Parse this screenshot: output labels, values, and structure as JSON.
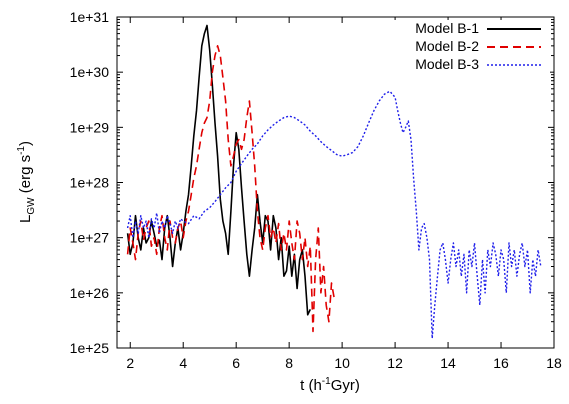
{
  "chart_data": {
    "type": "line",
    "title": "",
    "xlabel": "t (h",
    "xlabel_sup": "-1",
    "xlabel_rest": "Gyr)",
    "ylabel_main": "L",
    "ylabel_sub": "GW",
    "ylabel_unit": " (erg s",
    "ylabel_sup": "-1",
    "ylabel_close": ")",
    "xlim": [
      1.5,
      18
    ],
    "ylim": [
      1e+25,
      1e+31
    ],
    "yscale": "log",
    "x_ticks": [
      2,
      4,
      6,
      8,
      10,
      12,
      14,
      16,
      18
    ],
    "x_tick_labels": [
      "2",
      "4",
      "6",
      "8",
      "10",
      "12",
      "14",
      "16",
      "18"
    ],
    "y_ticks": [
      1e+25,
      1e+26,
      1e+27,
      1e+28,
      1e+29,
      1e+30,
      1e+31
    ],
    "y_tick_labels": [
      "1e+25",
      "1e+26",
      "1e+27",
      "1e+28",
      "1e+29",
      "1e+30",
      "1e+31"
    ],
    "grid": false,
    "legend_position": "top-right",
    "series": [
      {
        "name": "Model B-1",
        "color": "#000000",
        "dash": "solid",
        "x": [
          1.9,
          2.0,
          2.1,
          2.2,
          2.3,
          2.4,
          2.5,
          2.6,
          2.7,
          2.8,
          2.9,
          3.0,
          3.1,
          3.2,
          3.3,
          3.4,
          3.5,
          3.6,
          3.7,
          3.8,
          3.9,
          4.0,
          4.1,
          4.2,
          4.3,
          4.4,
          4.5,
          4.6,
          4.7,
          4.8,
          4.9,
          5.0,
          5.1,
          5.2,
          5.3,
          5.4,
          5.5,
          5.6,
          5.7,
          5.8,
          5.9,
          6.0,
          6.1,
          6.2,
          6.3,
          6.4,
          6.5,
          6.6,
          6.7,
          6.8,
          6.9,
          7.0,
          7.1,
          7.2,
          7.3,
          7.4,
          7.5,
          7.6,
          7.7,
          7.8,
          7.9,
          8.0,
          8.1,
          8.2,
          8.3,
          8.4,
          8.5,
          8.6,
          8.7,
          8.8
        ],
        "y": [
          1.2e+27,
          5e+26,
          8e+26,
          2.5e+27,
          1e+27,
          6e+26,
          1.5e+27,
          8e+26,
          1e+27,
          2e+27,
          1.2e+27,
          7e+26,
          9e+26,
          4e+26,
          1.5e+27,
          2.5e+27,
          1e+27,
          3e+26,
          8e+26,
          1.5e+27,
          6e+26,
          1.2e+27,
          3e+27,
          6e+27,
          2e+28,
          7e+28,
          2e+29,
          8e+29,
          3e+30,
          5e+30,
          7e+30,
          2.5e+30,
          6e+29,
          1.2e+29,
          3e+28,
          5e+27,
          2e+27,
          1.2e+27,
          5e+26,
          3e+27,
          2e+28,
          8e+28,
          4e+28,
          8e+27,
          2e+27,
          5e+26,
          2e+26,
          6e+26,
          1.5e+27,
          6e+27,
          2e+27,
          8e+26,
          2.5e+27,
          2e+27,
          6e+26,
          2.5e+27,
          1.5e+27,
          4e+26,
          1e+27,
          2e+26,
          2.5e+26,
          7e+26,
          2e+26,
          5e+26,
          1.2e+26,
          4e+26,
          6e+26,
          2e+26,
          4e+25,
          5e+25
        ]
      },
      {
        "name": "Model B-2",
        "color": "#e00000",
        "dash": "8,5",
        "x": [
          1.9,
          2.0,
          2.1,
          2.2,
          2.3,
          2.4,
          2.5,
          2.6,
          2.7,
          2.8,
          2.9,
          3.0,
          3.1,
          3.2,
          3.3,
          3.4,
          3.5,
          3.6,
          3.7,
          3.8,
          3.9,
          4.0,
          4.1,
          4.2,
          4.3,
          4.4,
          4.5,
          4.6,
          4.7,
          4.8,
          4.9,
          5.0,
          5.1,
          5.2,
          5.3,
          5.4,
          5.5,
          5.6,
          5.7,
          5.8,
          5.9,
          6.0,
          6.1,
          6.2,
          6.3,
          6.4,
          6.5,
          6.6,
          6.7,
          6.8,
          6.9,
          7.0,
          7.1,
          7.2,
          7.3,
          7.4,
          7.5,
          7.6,
          7.7,
          7.8,
          7.9,
          8.0,
          8.1,
          8.2,
          8.3,
          8.4,
          8.5,
          8.6,
          8.7,
          8.8,
          8.9,
          9.0,
          9.1,
          9.2,
          9.3,
          9.4,
          9.5,
          9.6,
          9.7
        ],
        "y": [
          5e+26,
          1.5e+27,
          8e+26,
          4e+26,
          1.2e+27,
          2e+27,
          9e+26,
          1.5e+27,
          2e+27,
          7e+26,
          1e+27,
          5e+26,
          1.5e+27,
          2.5e+27,
          1e+27,
          6e+26,
          2e+27,
          1e+27,
          8e+26,
          1.5e+27,
          2e+27,
          1e+27,
          2e+27,
          3e+27,
          6e+27,
          1.2e+28,
          2e+28,
          4e+28,
          8e+28,
          1.2e+29,
          1.5e+29,
          3e+29,
          1e+30,
          2e+30,
          3e+30,
          2e+30,
          8e+29,
          3e+29,
          6e+28,
          2e+28,
          3e+28,
          5e+28,
          6e+28,
          4e+28,
          6e+28,
          1.5e+29,
          3e+29,
          8e+28,
          2e+28,
          3e+27,
          1e+27,
          6e+26,
          1.5e+27,
          2.5e+27,
          1e+27,
          1.5e+27,
          8e+26,
          1.8e+27,
          6e+26,
          1.2e+27,
          6e+26,
          2e+27,
          8e+26,
          4e+26,
          2e+27,
          1.2e+27,
          4e+26,
          1e+27,
          3e+26,
          7e+26,
          2e+25,
          4e+26,
          1.5e+27,
          1e+26,
          3e+26,
          6e+25,
          3e+25,
          1.5e+26,
          8e+25
        ]
      },
      {
        "name": "Model B-3",
        "color": "#1e1eea",
        "dash": "2,2",
        "x": [
          1.9,
          2.0,
          2.1,
          2.2,
          2.3,
          2.4,
          2.5,
          2.6,
          2.7,
          2.8,
          2.9,
          3.0,
          3.1,
          3.2,
          3.3,
          3.4,
          3.5,
          3.6,
          3.7,
          3.8,
          3.9,
          4.0,
          4.2,
          4.4,
          4.6,
          4.8,
          5.0,
          5.2,
          5.4,
          5.6,
          5.8,
          6.0,
          6.2,
          6.4,
          6.6,
          6.8,
          7.0,
          7.2,
          7.4,
          7.6,
          7.8,
          8.0,
          8.2,
          8.4,
          8.6,
          8.8,
          9.0,
          9.2,
          9.4,
          9.6,
          9.8,
          10.0,
          10.2,
          10.4,
          10.6,
          10.8,
          11.0,
          11.2,
          11.4,
          11.6,
          11.8,
          12.0,
          12.1,
          12.2,
          12.3,
          12.4,
          12.5,
          12.6,
          12.7,
          12.8,
          12.9,
          13.0,
          13.1,
          13.2,
          13.3,
          13.4,
          13.5,
          13.6,
          13.7,
          13.8,
          13.9,
          14.0,
          14.1,
          14.2,
          14.3,
          14.4,
          14.5,
          14.6,
          14.7,
          14.8,
          14.9,
          15.0,
          15.1,
          15.2,
          15.3,
          15.4,
          15.5,
          15.6,
          15.7,
          15.8,
          15.9,
          16.0,
          16.1,
          16.2,
          16.3,
          16.4,
          16.5,
          16.6,
          16.7,
          16.8,
          16.9,
          17.0,
          17.1,
          17.2,
          17.3,
          17.4,
          17.5
        ],
        "y": [
          1.5e+27,
          2.5e+27,
          1e+27,
          2e+27,
          1.2e+27,
          2.5e+27,
          1.5e+27,
          2e+27,
          1e+27,
          2.2e+27,
          1.5e+27,
          2.8e+27,
          1.2e+27,
          2e+27,
          1.5e+27,
          2.5e+27,
          1.8e+27,
          1.2e+27,
          2e+27,
          1.5e+27,
          2.2e+27,
          2e+27,
          1.8e+27,
          2.5e+27,
          2.2e+27,
          3e+27,
          3.5e+27,
          4.5e+27,
          6e+27,
          8e+27,
          1e+28,
          1.6e+28,
          2.2e+28,
          3e+28,
          4e+28,
          5e+28,
          7e+28,
          9e+28,
          1.1e+29,
          1.3e+29,
          1.5e+29,
          1.6e+29,
          1.5e+29,
          1.3e+29,
          1.1e+29,
          8.5e+28,
          7e+28,
          5.5e+28,
          4.5e+28,
          3.8e+28,
          3.2e+28,
          3e+28,
          3.2e+28,
          3.5e+28,
          4.5e+28,
          7e+28,
          1.2e+29,
          2e+29,
          3e+29,
          4e+29,
          4.5e+29,
          3.5e+29,
          2e+29,
          1.2e+29,
          8e+28,
          1e+29,
          1.3e+29,
          6e+28,
          1.2e+28,
          3e+27,
          6e+26,
          1.5e+27,
          1.8e+27,
          1e+27,
          4e+26,
          1.5e+25,
          6e+25,
          2e+26,
          6e+26,
          8e+26,
          4e+26,
          1.5e+26,
          4e+26,
          8e+26,
          3e+26,
          6e+26,
          2e+26,
          5e+26,
          1e+26,
          6e+26,
          3e+26,
          8e+26,
          2e+26,
          6e+25,
          4e+26,
          1e+26,
          6e+26,
          3e+26,
          8e+26,
          5e+26,
          2e+26,
          6e+26,
          4e+26,
          1e+26,
          8e+26,
          3e+26,
          6e+26,
          2e+26,
          5e+26,
          8e+26,
          3e+26,
          6e+26,
          1e+26,
          4e+26,
          2e+26,
          6e+26,
          3e+26
        ]
      }
    ]
  }
}
